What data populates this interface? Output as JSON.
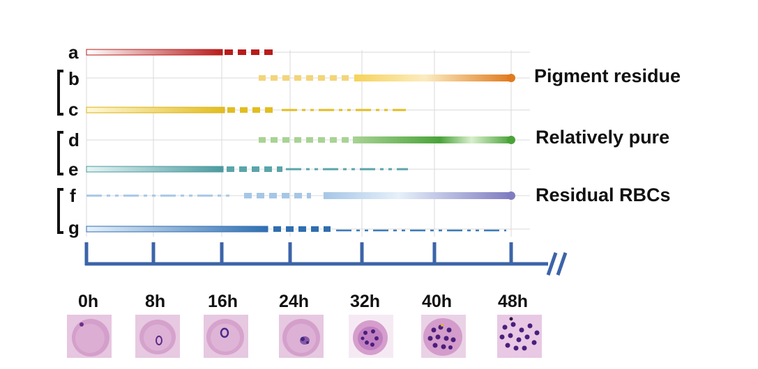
{
  "rows": [
    {
      "id": "a",
      "label": "a"
    },
    {
      "id": "b",
      "label": "b"
    },
    {
      "id": "c",
      "label": "c"
    },
    {
      "id": "d",
      "label": "d"
    },
    {
      "id": "e",
      "label": "e"
    },
    {
      "id": "f",
      "label": "f"
    },
    {
      "id": "g",
      "label": "g"
    }
  ],
  "groups": [
    {
      "label": "Pigment residue",
      "rows": [
        "b",
        "c"
      ]
    },
    {
      "label": "Relatively pure",
      "rows": [
        "d",
        "e"
      ]
    },
    {
      "label": "Residual RBCs",
      "rows": [
        "f",
        "g"
      ]
    }
  ],
  "axis": {
    "ticks": [
      "0h",
      "8h",
      "16h",
      "24h",
      "32h",
      "40h",
      "48h"
    ],
    "unit": "hours",
    "max_hours": 48,
    "break_mark": "//"
  },
  "colors": {
    "a": "#b81c1c",
    "b": "#f2c94c",
    "b_end": "#e07b20",
    "c": "#e2bd20",
    "d": "#9ccb86",
    "d_mid": "#4aa33a",
    "e": "#5aa5a9",
    "f": "#a6c6e6",
    "f_end": "#7f7cc0",
    "g": "#2f6eb0",
    "axis": "#3c64a8",
    "grid": "#d6d6d6"
  }
}
